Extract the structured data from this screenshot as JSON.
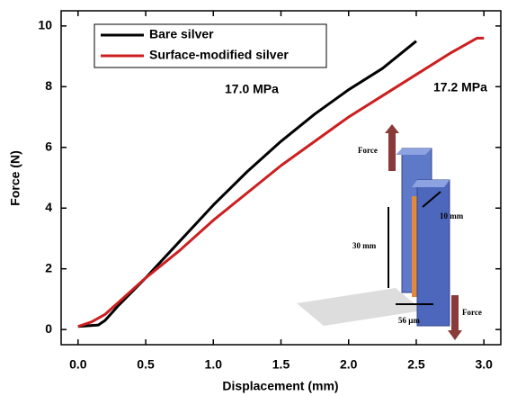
{
  "chart_data": {
    "type": "line",
    "x_label": "Displacement (mm)",
    "y_label": "Force (N)",
    "xlim": [
      -0.125,
      3.125
    ],
    "ylim": [
      -0.5,
      10.5
    ],
    "xticks": [
      {
        "value": 0,
        "label": "0.0"
      },
      0.5,
      {
        "value": 1,
        "label": "1.0"
      },
      1.5,
      {
        "value": 2,
        "label": "2.0"
      },
      2.5,
      {
        "value": 3,
        "label": "3.0"
      }
    ],
    "yticks": [
      0,
      2,
      4,
      6,
      8,
      10
    ],
    "legend": "upper left",
    "series": [
      {
        "name": "Bare silver",
        "color": "#000000",
        "x": [
          0,
          0.15,
          0.2,
          0.3,
          0.5,
          0.75,
          1.0,
          1.25,
          1.5,
          1.75,
          2.0,
          2.25,
          2.5
        ],
        "values": [
          0.1,
          0.15,
          0.3,
          0.8,
          1.7,
          2.9,
          4.1,
          5.2,
          6.2,
          7.1,
          7.9,
          8.6,
          9.5
        ]
      },
      {
        "name": "Surface-modified silver",
        "color": "#cc1f1f",
        "x": [
          0,
          0.1,
          0.2,
          0.5,
          0.75,
          1.0,
          1.25,
          1.5,
          1.75,
          2.0,
          2.25,
          2.5,
          2.75,
          2.95,
          3.0
        ],
        "values": [
          0.1,
          0.25,
          0.5,
          1.7,
          2.6,
          3.6,
          4.5,
          5.4,
          6.2,
          7.0,
          7.7,
          8.4,
          9.1,
          9.6,
          9.6
        ]
      }
    ],
    "annotations": [
      "17.0 MPa",
      "17.2 MPa"
    ],
    "inset_labels": [
      "Force",
      "Force",
      "30 mm",
      "10 mm",
      "56 μm"
    ]
  }
}
